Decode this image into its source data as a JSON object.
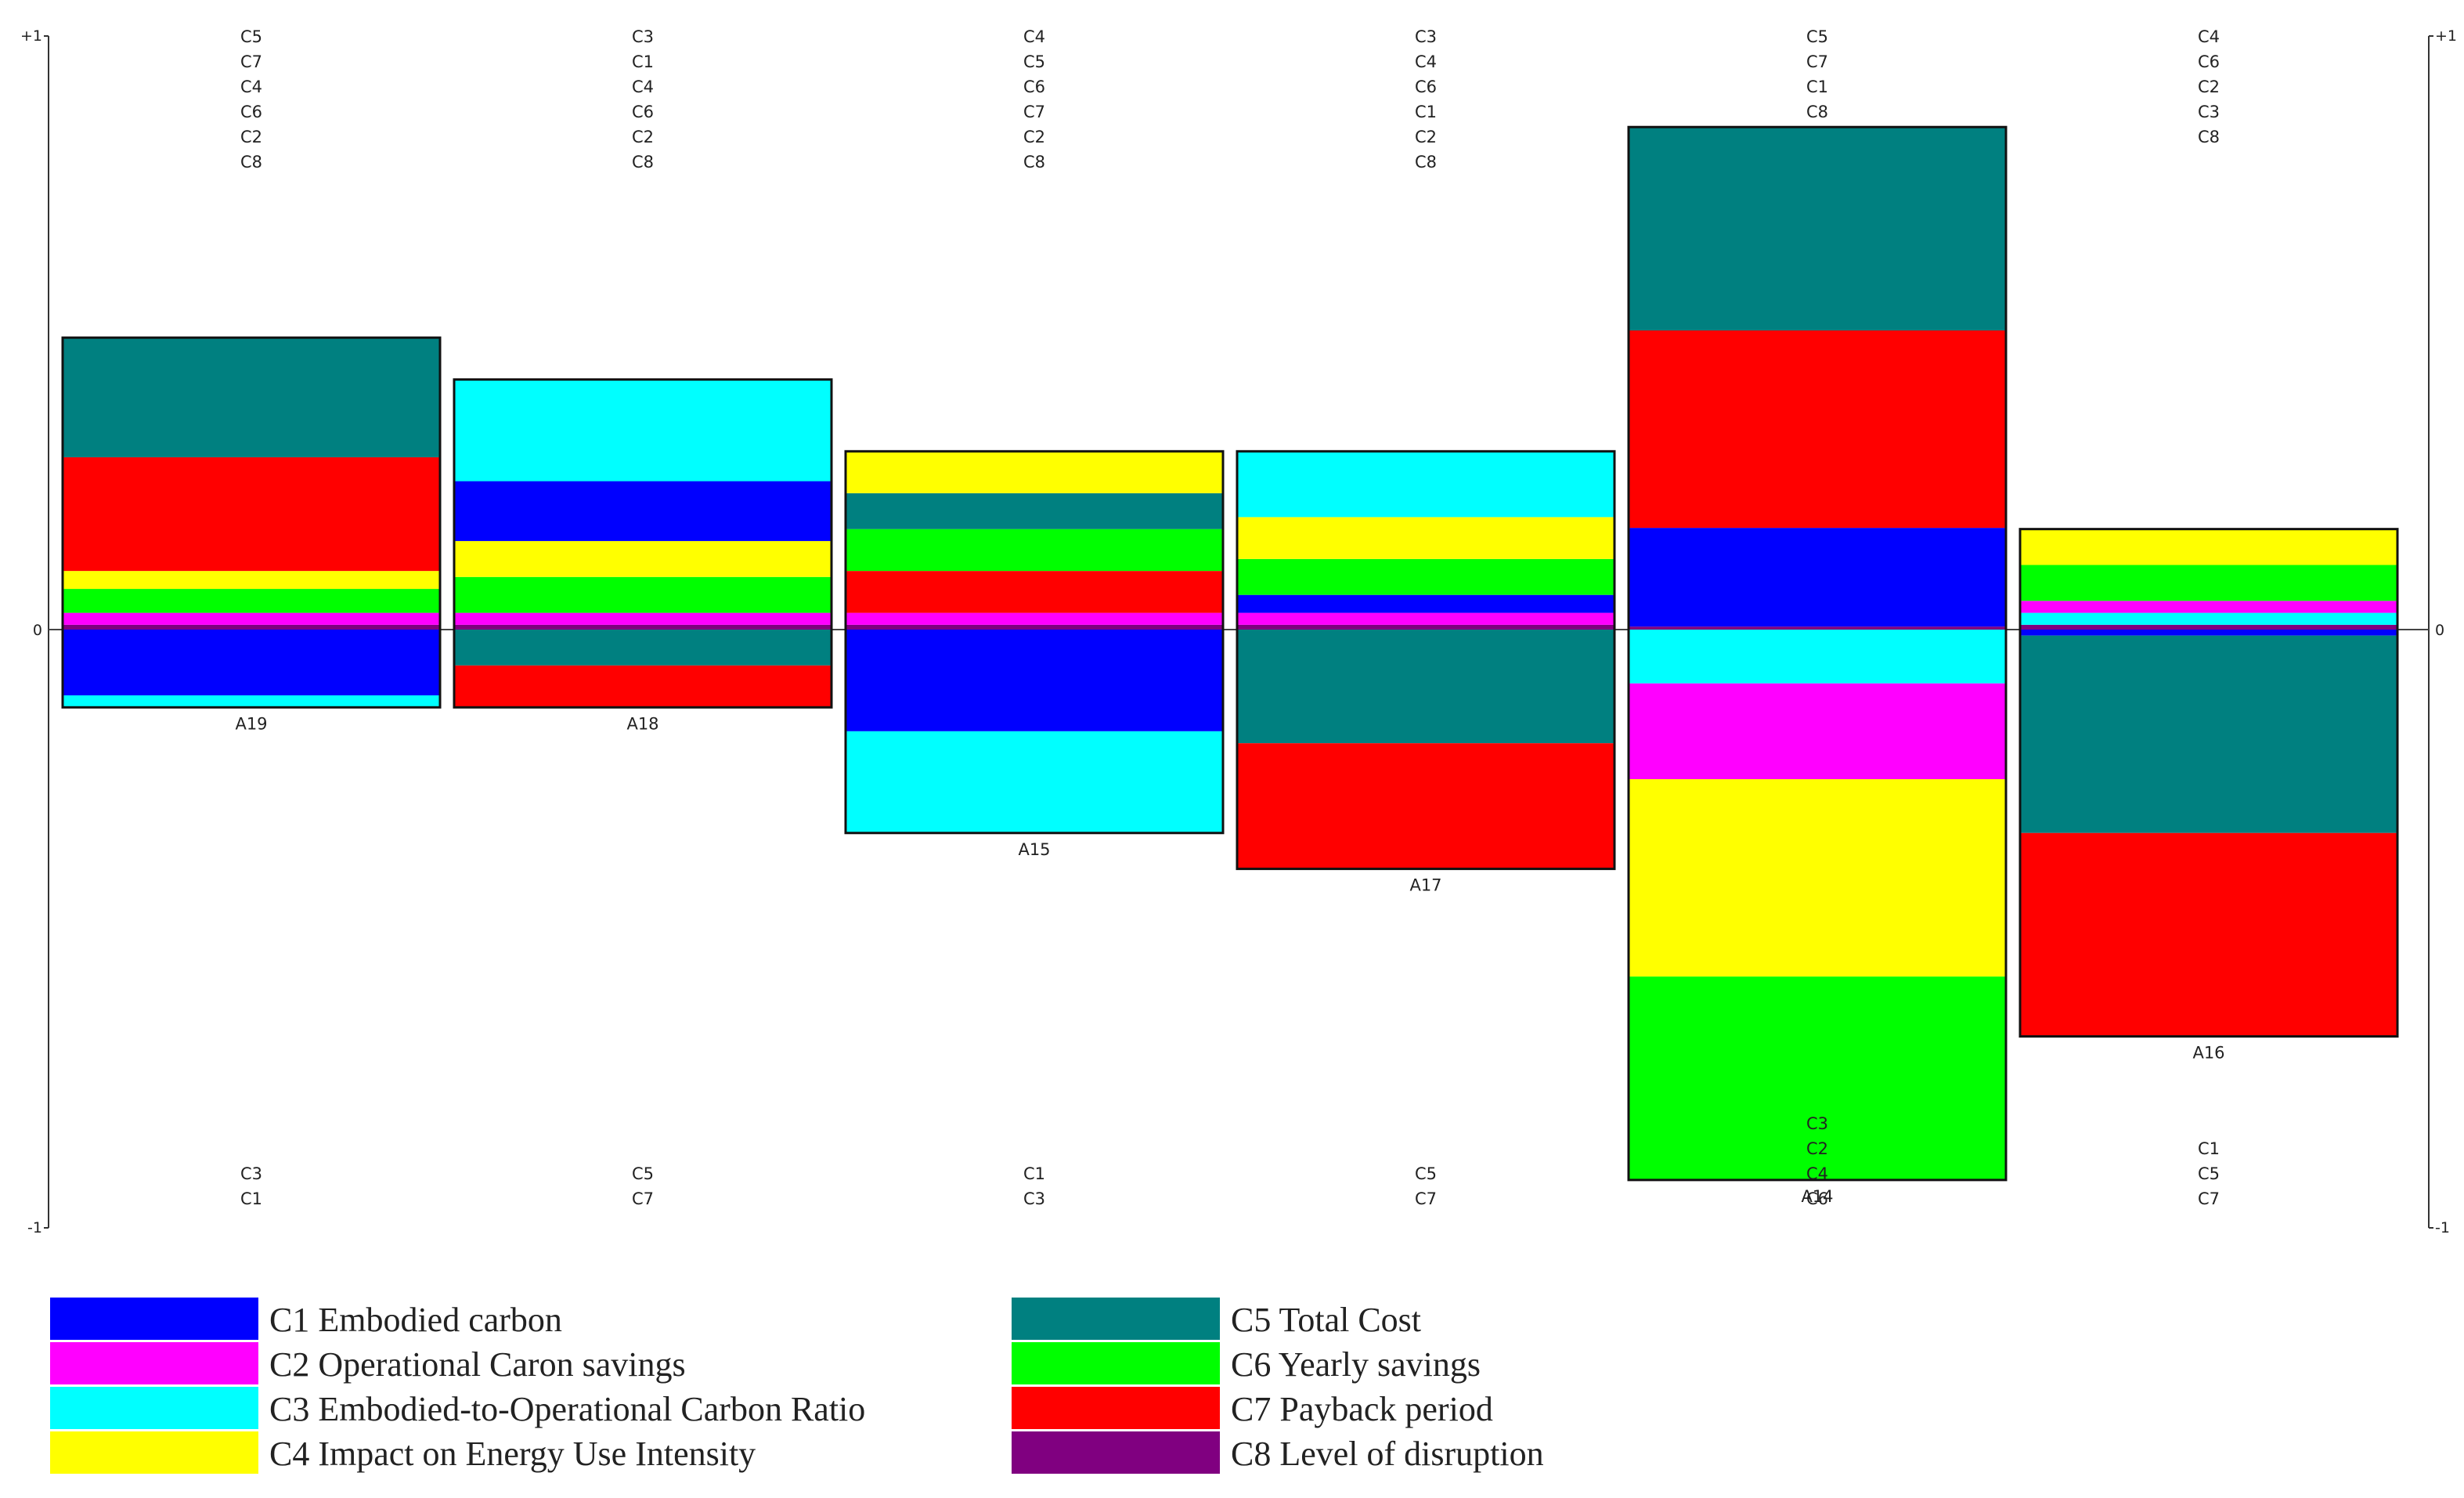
{
  "chart_data": {
    "type": "bar",
    "axis": {
      "y_top_label": "+1",
      "y_zero_label": "0",
      "y_bottom_label": "-1",
      "ylim": [
        -1,
        1
      ]
    },
    "colors": {
      "C1": "#0000ff",
      "C2": "#ff00ff",
      "C3": "#00ffff",
      "C4": "#ffff00",
      "C5": "#008080",
      "C6": "#00ff00",
      "C7": "#ff0000",
      "C8": "#800080"
    },
    "legend": [
      {
        "key": "C1",
        "label": "C1 Embodied carbon"
      },
      {
        "key": "C2",
        "label": "C2 Operational Caron savings"
      },
      {
        "key": "C3",
        "label": "C3 Embodied-to-Operational Carbon Ratio"
      },
      {
        "key": "C4",
        "label": "C4 Impact on Energy Use Intensity"
      },
      {
        "key": "C5",
        "label": "C5 Total Cost"
      },
      {
        "key": "C6",
        "label": "C6 Yearly savings"
      },
      {
        "key": "C7",
        "label": "C7 Payback period"
      },
      {
        "key": "C8",
        "label": "C8 Level of disruption"
      }
    ],
    "alternatives": [
      {
        "name": "A19",
        "positive_criteria": [
          "C5",
          "C7",
          "C4",
          "C6",
          "C2",
          "C8"
        ],
        "negative_criteria": [
          "C3",
          "C1"
        ],
        "positive_segments": [
          [
            "C8",
            0.008
          ],
          [
            "C2",
            0.02
          ],
          [
            "C6",
            0.04
          ],
          [
            "C4",
            0.03
          ],
          [
            "C7",
            0.19
          ],
          [
            "C5",
            0.2
          ]
        ],
        "negative_segments": [
          [
            "C1",
            -0.11
          ],
          [
            "C3",
            -0.02
          ]
        ]
      },
      {
        "name": "A18",
        "positive_criteria": [
          "C3",
          "C1",
          "C4",
          "C6",
          "C2",
          "C8"
        ],
        "negative_criteria": [
          "C5",
          "C7"
        ],
        "positive_segments": [
          [
            "C8",
            0.008
          ],
          [
            "C2",
            0.02
          ],
          [
            "C6",
            0.06
          ],
          [
            "C4",
            0.06
          ],
          [
            "C1",
            0.1
          ],
          [
            "C3",
            0.17
          ]
        ],
        "negative_segments": [
          [
            "C5",
            -0.06
          ],
          [
            "C7",
            -0.07
          ]
        ]
      },
      {
        "name": "A15",
        "positive_criteria": [
          "C4",
          "C5",
          "C6",
          "C7",
          "C2",
          "C8"
        ],
        "negative_criteria": [
          "C1",
          "C3"
        ],
        "positive_segments": [
          [
            "C8",
            0.008
          ],
          [
            "C2",
            0.02
          ],
          [
            "C7",
            0.07
          ],
          [
            "C6",
            0.07
          ],
          [
            "C5",
            0.06
          ],
          [
            "C4",
            0.07
          ]
        ],
        "negative_segments": [
          [
            "C1",
            -0.17
          ],
          [
            "C3",
            -0.17
          ]
        ]
      },
      {
        "name": "A17",
        "positive_criteria": [
          "C3",
          "C4",
          "C6",
          "C1",
          "C2",
          "C8"
        ],
        "negative_criteria": [
          "C5",
          "C7"
        ],
        "positive_segments": [
          [
            "C8",
            0.008
          ],
          [
            "C2",
            0.02
          ],
          [
            "C1",
            0.03
          ],
          [
            "C6",
            0.06
          ],
          [
            "C4",
            0.07
          ],
          [
            "C3",
            0.11
          ]
        ],
        "negative_segments": [
          [
            "C5",
            -0.19
          ],
          [
            "C7",
            -0.21
          ]
        ]
      },
      {
        "name": "A14",
        "positive_criteria": [
          "C5",
          "C7",
          "C1",
          "C8"
        ],
        "negative_criteria": [
          "C3",
          "C2",
          "C4",
          "C6"
        ],
        "positive_segments": [
          [
            "C8",
            0.005
          ],
          [
            "C1",
            0.165
          ],
          [
            "C7",
            0.33
          ],
          [
            "C5",
            0.34
          ]
        ],
        "negative_segments": [
          [
            "C3",
            -0.09
          ],
          [
            "C2",
            -0.16
          ],
          [
            "C4",
            -0.33
          ],
          [
            "C6",
            -0.34
          ]
        ]
      },
      {
        "name": "A16",
        "positive_criteria": [
          "C4",
          "C6",
          "C2",
          "C3",
          "C8"
        ],
        "negative_criteria": [
          "C1",
          "C5",
          "C7"
        ],
        "positive_segments": [
          [
            "C8",
            0.008
          ],
          [
            "C3",
            0.02
          ],
          [
            "C2",
            0.02
          ],
          [
            "C6",
            0.06
          ],
          [
            "C4",
            0.06
          ]
        ],
        "negative_segments": [
          [
            "C1",
            -0.01
          ],
          [
            "C5",
            -0.33
          ],
          [
            "C7",
            -0.34
          ]
        ]
      }
    ]
  }
}
